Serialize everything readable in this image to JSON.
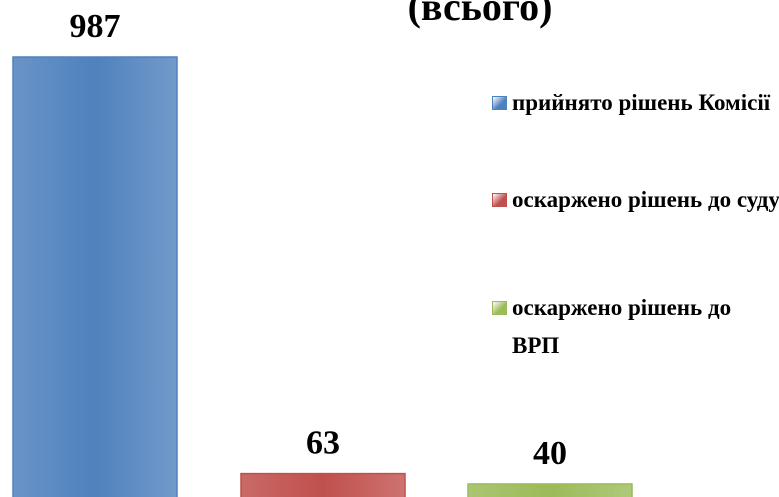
{
  "chart_data": {
    "type": "bar",
    "title": "(всього)",
    "series": [
      {
        "name": "прийнято рішень Комісії",
        "color": "#4f81bd",
        "values": [
          987
        ]
      },
      {
        "name": "оскаржено рішень до суду",
        "color": "#c0504d",
        "values": [
          63
        ]
      },
      {
        "name": "оскаржено рішень до ВРП",
        "color": "#9bbb59",
        "values": [
          40
        ]
      }
    ]
  }
}
